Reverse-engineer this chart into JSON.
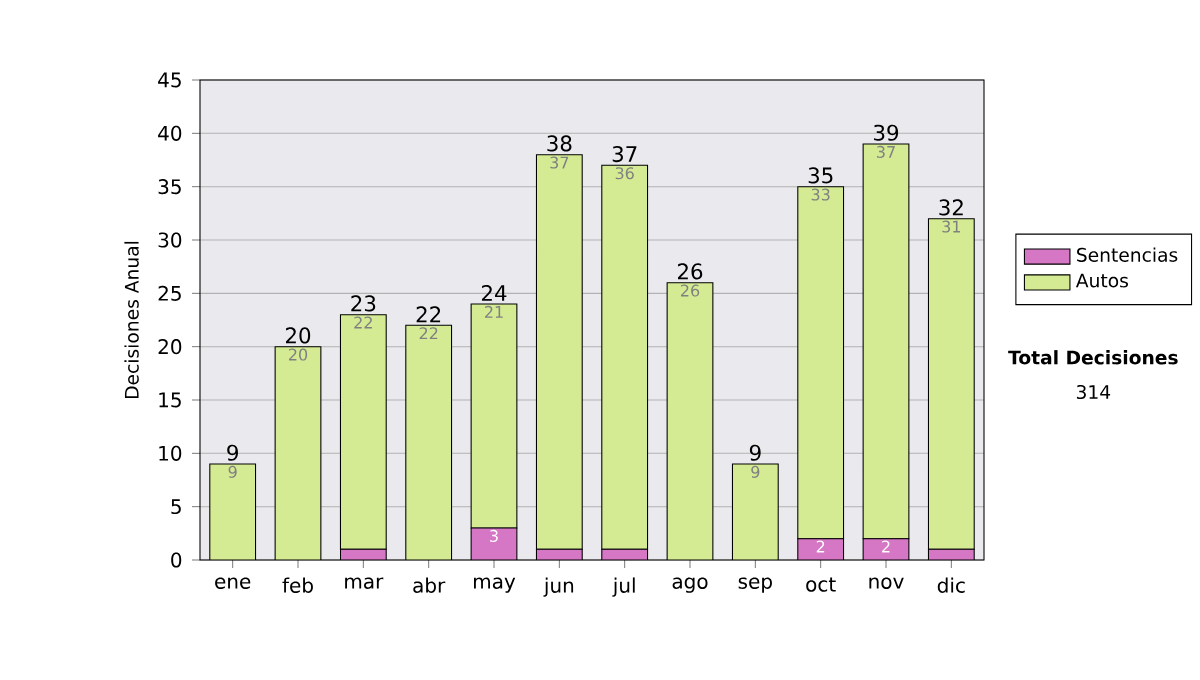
{
  "chart_data": {
    "type": "bar",
    "stacked": true,
    "ylabel": "Decisiones Anual",
    "categories": [
      "ene",
      "feb",
      "mar",
      "abr",
      "may",
      "jun",
      "jul",
      "ago",
      "sep",
      "oct",
      "nov",
      "dic"
    ],
    "series": [
      {
        "name": "Sentencias",
        "color": "#d577c4",
        "values": [
          0,
          0,
          1,
          0,
          3,
          1,
          1,
          0,
          0,
          2,
          2,
          1
        ],
        "value_labels": [
          null,
          null,
          null,
          null,
          "3",
          null,
          null,
          null,
          null,
          "2",
          "2",
          null
        ]
      },
      {
        "name": "Autos",
        "color": "#d4eb94",
        "values": [
          9,
          20,
          22,
          22,
          21,
          37,
          36,
          26,
          9,
          33,
          37,
          31
        ],
        "value_labels": [
          "9",
          "20",
          "22",
          "22",
          "21",
          "37",
          "36",
          "26",
          "9",
          "33",
          "37",
          "31"
        ]
      }
    ],
    "totals": [
      "9",
      "20",
      "23",
      "22",
      "24",
      "38",
      "37",
      "26",
      "9",
      "35",
      "39",
      "32"
    ],
    "ylim": [
      0,
      45
    ],
    "yticks": [
      0,
      5,
      10,
      15,
      20,
      25,
      30,
      35,
      40,
      45
    ],
    "grid": "y",
    "legend": "right",
    "annotations": [
      "Total Decisiones",
      "314"
    ]
  }
}
